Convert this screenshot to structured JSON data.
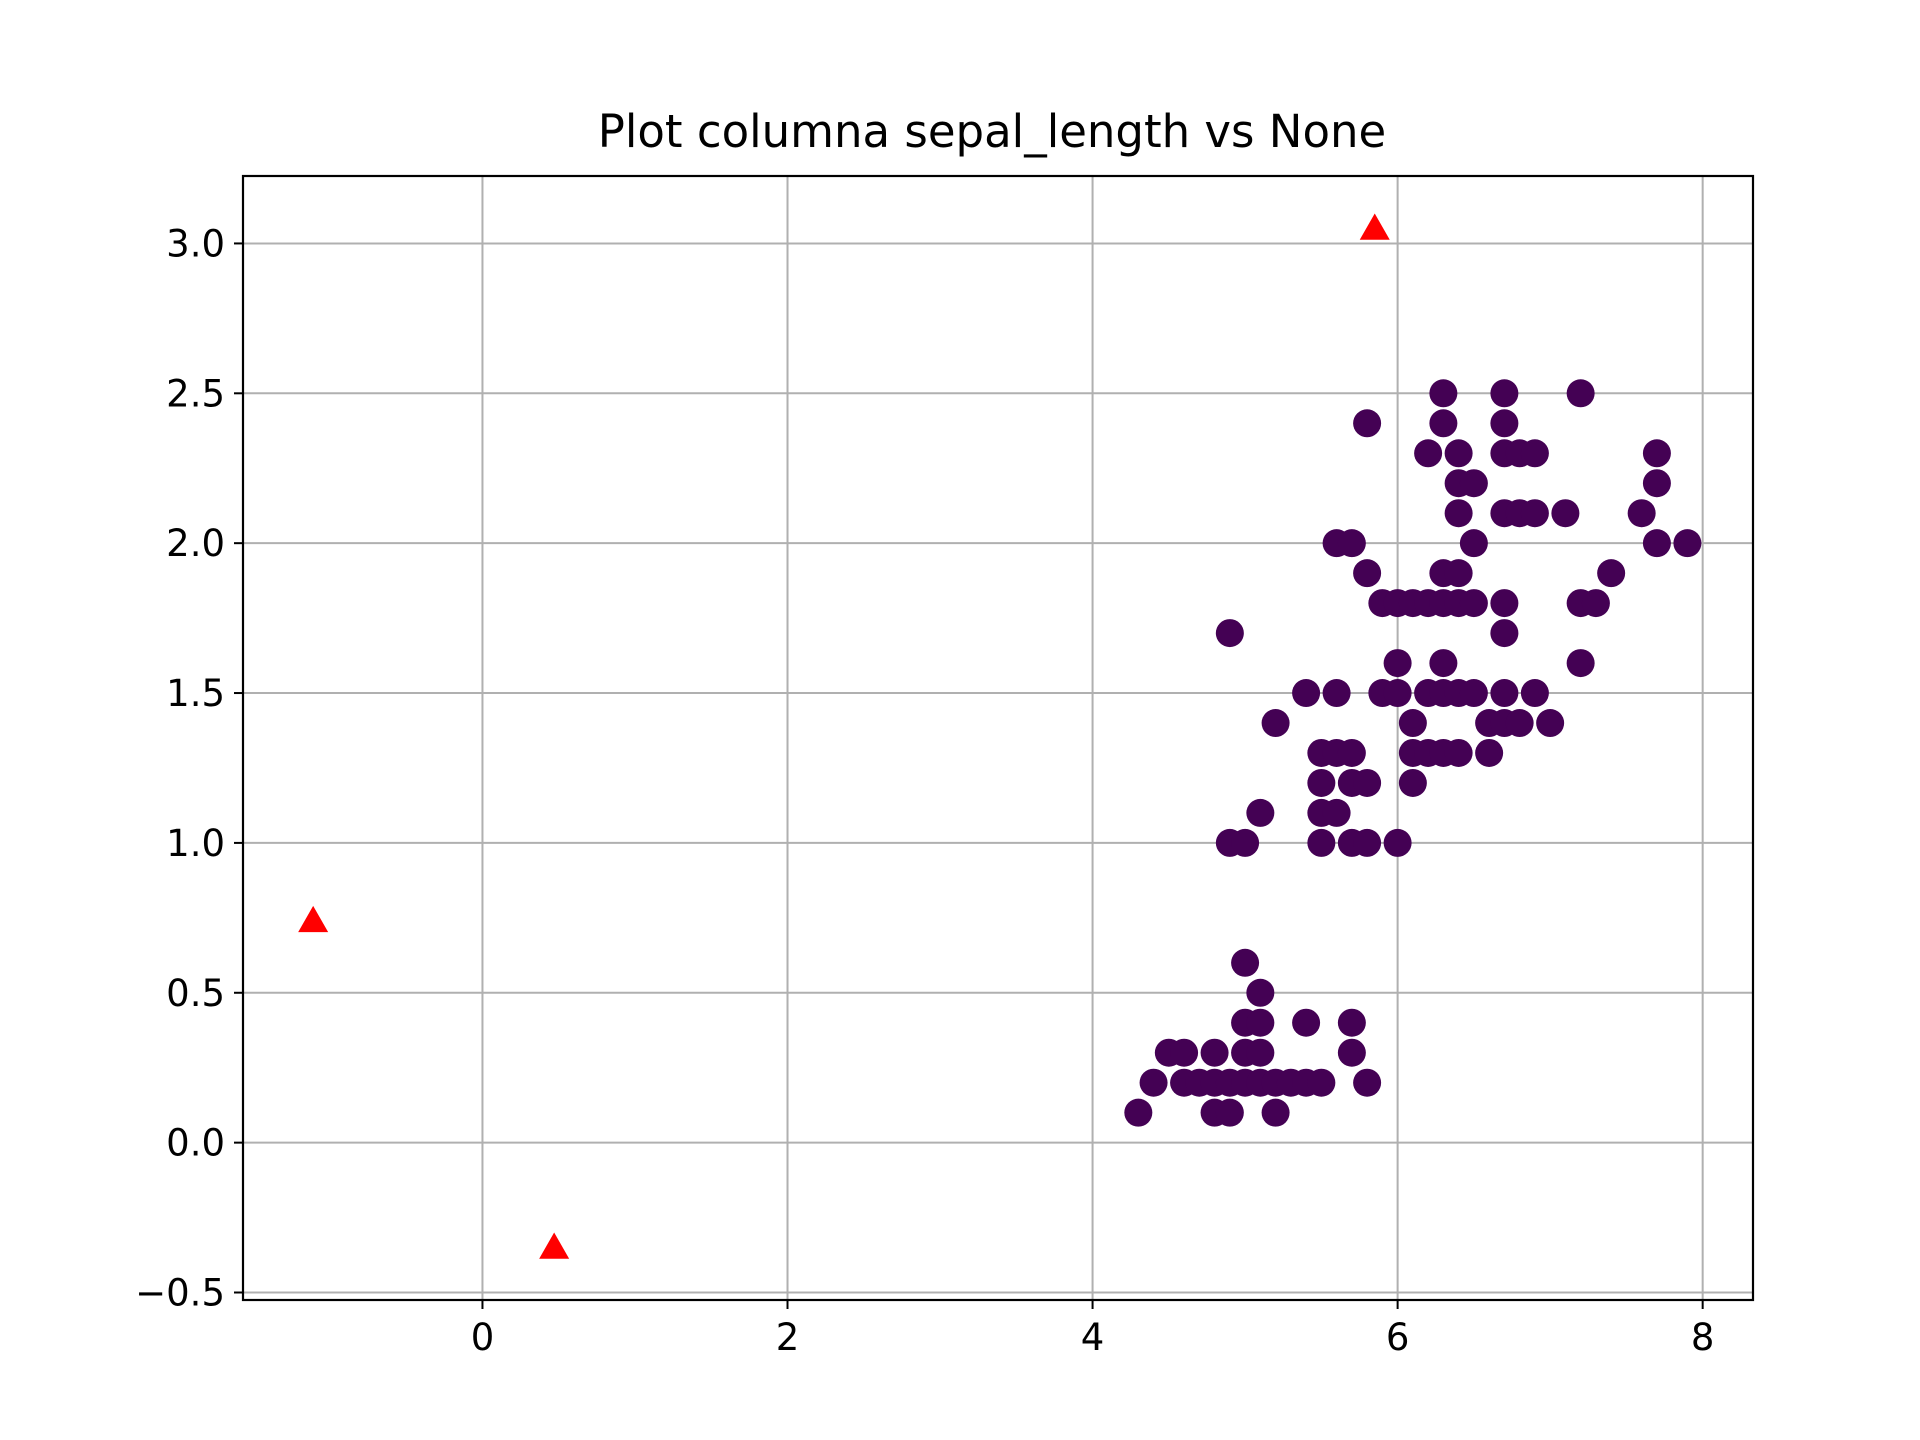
{
  "chart_data": {
    "type": "scatter",
    "title": "Plot columna sepal_length vs None",
    "xlabel": "",
    "ylabel": "",
    "xlim": [
      -1.57,
      8.33
    ],
    "ylim": [
      -0.525,
      3.225
    ],
    "grid": true,
    "x_ticks": [
      0,
      2,
      4,
      6,
      8
    ],
    "x_tick_labels": [
      "0",
      "2",
      "4",
      "6",
      "8"
    ],
    "y_ticks": [
      -0.5,
      0.0,
      0.5,
      1.0,
      1.5,
      2.0,
      2.5,
      3.0
    ],
    "y_tick_labels": [
      "−0.5",
      "0.0",
      "0.5",
      "1.0",
      "1.5",
      "2.0",
      "2.5",
      "3.0"
    ],
    "series": [
      {
        "marker": "circle",
        "color": "#440154",
        "points": [
          [
            4.3,
            0.1
          ],
          [
            4.4,
            0.2
          ],
          [
            4.5,
            0.3
          ],
          [
            4.6,
            0.2
          ],
          [
            4.6,
            0.3
          ],
          [
            4.7,
            0.2
          ],
          [
            4.8,
            0.1
          ],
          [
            4.8,
            0.2
          ],
          [
            4.8,
            0.3
          ],
          [
            4.9,
            0.1
          ],
          [
            4.9,
            0.2
          ],
          [
            5.0,
            0.2
          ],
          [
            5.0,
            0.3
          ],
          [
            5.0,
            0.4
          ],
          [
            5.0,
            0.6
          ],
          [
            5.1,
            0.2
          ],
          [
            5.1,
            0.3
          ],
          [
            5.1,
            0.4
          ],
          [
            5.1,
            0.5
          ],
          [
            5.2,
            0.1
          ],
          [
            5.2,
            0.2
          ],
          [
            5.3,
            0.2
          ],
          [
            5.4,
            0.2
          ],
          [
            5.4,
            0.4
          ],
          [
            5.5,
            0.2
          ],
          [
            5.7,
            0.3
          ],
          [
            5.7,
            0.4
          ],
          [
            5.8,
            0.2
          ],
          [
            4.9,
            1.0
          ],
          [
            5.0,
            1.0
          ],
          [
            5.1,
            1.1
          ],
          [
            5.2,
            1.4
          ],
          [
            5.4,
            1.5
          ],
          [
            5.5,
            1.0
          ],
          [
            5.5,
            1.1
          ],
          [
            5.5,
            1.2
          ],
          [
            5.5,
            1.3
          ],
          [
            5.6,
            1.1
          ],
          [
            5.6,
            1.3
          ],
          [
            5.6,
            1.5
          ],
          [
            5.7,
            1.0
          ],
          [
            5.7,
            1.2
          ],
          [
            5.7,
            1.3
          ],
          [
            5.8,
            1.0
          ],
          [
            5.8,
            1.2
          ],
          [
            5.9,
            1.5
          ],
          [
            5.9,
            1.8
          ],
          [
            6.0,
            1.0
          ],
          [
            6.0,
            1.5
          ],
          [
            6.0,
            1.6
          ],
          [
            6.0,
            1.8
          ],
          [
            6.1,
            1.2
          ],
          [
            6.1,
            1.3
          ],
          [
            6.1,
            1.4
          ],
          [
            6.1,
            1.8
          ],
          [
            6.2,
            1.3
          ],
          [
            6.2,
            1.5
          ],
          [
            6.2,
            1.8
          ],
          [
            6.3,
            1.3
          ],
          [
            6.3,
            1.5
          ],
          [
            6.3,
            1.6
          ],
          [
            6.3,
            1.8
          ],
          [
            6.3,
            1.9
          ],
          [
            6.4,
            1.3
          ],
          [
            6.4,
            1.5
          ],
          [
            6.4,
            1.8
          ],
          [
            6.4,
            1.9
          ],
          [
            6.5,
            1.5
          ],
          [
            6.5,
            1.8
          ],
          [
            6.6,
            1.3
          ],
          [
            6.6,
            1.4
          ],
          [
            6.7,
            1.4
          ],
          [
            6.7,
            1.5
          ],
          [
            6.7,
            1.7
          ],
          [
            6.7,
            1.8
          ],
          [
            6.8,
            1.4
          ],
          [
            6.9,
            1.5
          ],
          [
            7.0,
            1.4
          ],
          [
            4.9,
            1.7
          ],
          [
            5.6,
            2.0
          ],
          [
            5.7,
            2.0
          ],
          [
            5.8,
            1.9
          ],
          [
            5.8,
            2.4
          ],
          [
            6.2,
            2.3
          ],
          [
            6.3,
            2.4
          ],
          [
            6.3,
            2.5
          ],
          [
            6.4,
            2.1
          ],
          [
            6.4,
            2.2
          ],
          [
            6.4,
            2.3
          ],
          [
            6.5,
            2.0
          ],
          [
            6.5,
            2.2
          ],
          [
            6.7,
            2.1
          ],
          [
            6.7,
            2.3
          ],
          [
            6.7,
            2.4
          ],
          [
            6.7,
            2.5
          ],
          [
            6.8,
            2.1
          ],
          [
            6.8,
            2.3
          ],
          [
            6.9,
            2.1
          ],
          [
            6.9,
            2.3
          ],
          [
            7.1,
            2.1
          ],
          [
            7.2,
            1.6
          ],
          [
            7.2,
            1.8
          ],
          [
            7.2,
            2.5
          ],
          [
            7.3,
            1.8
          ],
          [
            7.4,
            1.9
          ],
          [
            7.6,
            2.1
          ],
          [
            7.7,
            2.0
          ],
          [
            7.7,
            2.2
          ],
          [
            7.7,
            2.3
          ],
          [
            7.9,
            2.0
          ]
        ]
      },
      {
        "marker": "triangle",
        "color": "#ff0000",
        "points": [
          [
            -1.11,
            0.74
          ],
          [
            0.47,
            -0.35
          ],
          [
            5.85,
            3.05
          ]
        ]
      }
    ]
  }
}
